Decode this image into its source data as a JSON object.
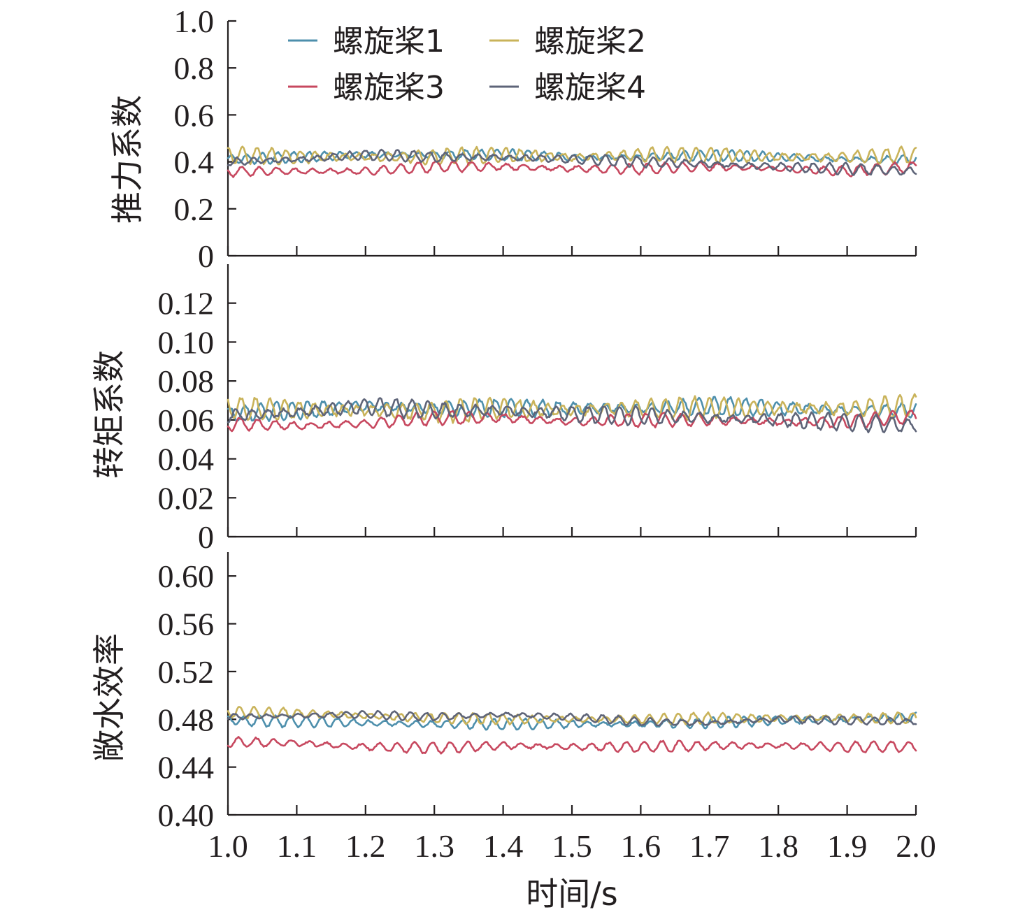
{
  "chart_data": {
    "type": "line",
    "xlabel": "时间/s",
    "xlim": [
      1.0,
      2.0
    ],
    "x_ticks": [
      "1.0",
      "1.1",
      "1.2",
      "1.3",
      "1.4",
      "1.5",
      "1.6",
      "1.7",
      "1.8",
      "1.9",
      "2.0"
    ],
    "legend": {
      "placement": "top-left",
      "entries": [
        {
          "name": "螺旋桨1",
          "color": "#4d8fac"
        },
        {
          "name": "螺旋桨2",
          "color": "#c9b35a"
        },
        {
          "name": "螺旋桨3",
          "color": "#c7485f"
        },
        {
          "name": "螺旋桨4",
          "color": "#5e6478"
        }
      ]
    },
    "panels": [
      {
        "ylabel": "推力系数",
        "ylim": [
          0,
          1.0
        ],
        "y_ticks": [
          "0",
          "0.2",
          "0.4",
          "0.6",
          "0.8",
          "1.0"
        ],
        "y_tick_values": [
          0,
          0.2,
          0.4,
          0.6,
          0.8,
          1.0
        ],
        "series": [
          {
            "name": "螺旋桨1",
            "x": [
              1.0,
              1.1,
              1.2,
              1.3,
              1.4,
              1.5,
              1.6,
              1.7,
              1.8,
              1.9,
              2.0
            ],
            "mean": [
              0.41,
              0.42,
              0.43,
              0.43,
              0.43,
              0.42,
              0.42,
              0.43,
              0.42,
              0.41,
              0.41
            ],
            "amplitude": 0.02
          },
          {
            "name": "螺旋桨2",
            "x": [
              1.0,
              1.1,
              1.2,
              1.3,
              1.4,
              1.5,
              1.6,
              1.7,
              1.8,
              1.9,
              2.0
            ],
            "mean": [
              0.43,
              0.42,
              0.42,
              0.42,
              0.43,
              0.42,
              0.43,
              0.43,
              0.42,
              0.42,
              0.43
            ],
            "amplitude": 0.03
          },
          {
            "name": "螺旋桨3",
            "x": [
              1.0,
              1.1,
              1.2,
              1.3,
              1.4,
              1.5,
              1.6,
              1.7,
              1.8,
              1.9,
              2.0
            ],
            "mean": [
              0.36,
              0.36,
              0.36,
              0.38,
              0.38,
              0.37,
              0.37,
              0.38,
              0.37,
              0.36,
              0.38
            ],
            "amplitude": 0.02
          },
          {
            "name": "螺旋桨4",
            "x": [
              1.0,
              1.1,
              1.2,
              1.3,
              1.4,
              1.5,
              1.6,
              1.7,
              1.8,
              1.9,
              2.0
            ],
            "mean": [
              0.4,
              0.41,
              0.43,
              0.42,
              0.42,
              0.41,
              0.4,
              0.39,
              0.38,
              0.37,
              0.36
            ],
            "amplitude": 0.02
          }
        ]
      },
      {
        "ylabel": "转矩系数",
        "ylim": [
          0,
          0.14
        ],
        "y_ticks": [
          "0",
          "0.02",
          "0.04",
          "0.06",
          "0.08",
          "0.10",
          "0.12"
        ],
        "y_tick_values": [
          0,
          0.02,
          0.04,
          0.06,
          0.08,
          0.1,
          0.12
        ],
        "series": [
          {
            "name": "螺旋桨1",
            "x": [
              1.0,
              1.1,
              1.2,
              1.3,
              1.4,
              1.5,
              1.6,
              1.7,
              1.8,
              1.9,
              2.0
            ],
            "mean": [
              0.063,
              0.065,
              0.067,
              0.066,
              0.066,
              0.066,
              0.066,
              0.067,
              0.066,
              0.065,
              0.065
            ],
            "amplitude": 0.004
          },
          {
            "name": "螺旋桨2",
            "x": [
              1.0,
              1.1,
              1.2,
              1.3,
              1.4,
              1.5,
              1.6,
              1.7,
              1.8,
              1.9,
              2.0
            ],
            "mean": [
              0.066,
              0.065,
              0.065,
              0.064,
              0.066,
              0.065,
              0.066,
              0.066,
              0.066,
              0.066,
              0.067
            ],
            "amplitude": 0.005
          },
          {
            "name": "螺旋桨3",
            "x": [
              1.0,
              1.1,
              1.2,
              1.3,
              1.4,
              1.5,
              1.6,
              1.7,
              1.8,
              1.9,
              2.0
            ],
            "mean": [
              0.058,
              0.057,
              0.058,
              0.061,
              0.061,
              0.059,
              0.06,
              0.06,
              0.059,
              0.059,
              0.062
            ],
            "amplitude": 0.003
          },
          {
            "name": "螺旋桨4",
            "x": [
              1.0,
              1.1,
              1.2,
              1.3,
              1.4,
              1.5,
              1.6,
              1.7,
              1.8,
              1.9,
              2.0
            ],
            "mean": [
              0.062,
              0.064,
              0.067,
              0.065,
              0.065,
              0.063,
              0.062,
              0.061,
              0.06,
              0.059,
              0.057
            ],
            "amplitude": 0.004
          }
        ]
      },
      {
        "ylabel": "敞水效率",
        "ylim": [
          0.4,
          0.62
        ],
        "y_ticks": [
          "0.40",
          "0.44",
          "0.48",
          "0.52",
          "0.56",
          "0.60"
        ],
        "y_tick_values": [
          0.4,
          0.44,
          0.48,
          0.52,
          0.56,
          0.6
        ],
        "series": [
          {
            "name": "螺旋桨1",
            "x": [
              1.0,
              1.1,
              1.2,
              1.3,
              1.4,
              1.5,
              1.6,
              1.7,
              1.8,
              1.9,
              2.0
            ],
            "mean": [
              0.479,
              0.478,
              0.477,
              0.476,
              0.476,
              0.476,
              0.476,
              0.477,
              0.479,
              0.48,
              0.482
            ],
            "amplitude": 0.004
          },
          {
            "name": "螺旋桨2",
            "x": [
              1.0,
              1.1,
              1.2,
              1.3,
              1.4,
              1.5,
              1.6,
              1.7,
              1.8,
              1.9,
              2.0
            ],
            "mean": [
              0.486,
              0.485,
              0.483,
              0.481,
              0.48,
              0.48,
              0.48,
              0.481,
              0.481,
              0.481,
              0.481
            ],
            "amplitude": 0.004
          },
          {
            "name": "螺旋桨3",
            "x": [
              1.0,
              1.1,
              1.2,
              1.3,
              1.4,
              1.5,
              1.6,
              1.7,
              1.8,
              1.9,
              2.0
            ],
            "mean": [
              0.461,
              0.46,
              0.457,
              0.456,
              0.458,
              0.457,
              0.457,
              0.458,
              0.458,
              0.457,
              0.457
            ],
            "amplitude": 0.004
          },
          {
            "name": "螺旋桨4",
            "x": [
              1.0,
              1.1,
              1.2,
              1.3,
              1.4,
              1.5,
              1.6,
              1.7,
              1.8,
              1.9,
              2.0
            ],
            "mean": [
              0.482,
              0.483,
              0.484,
              0.482,
              0.484,
              0.482,
              0.478,
              0.477,
              0.48,
              0.479,
              0.478
            ],
            "amplitude": 0.003
          }
        ]
      }
    ],
    "grid": false
  }
}
